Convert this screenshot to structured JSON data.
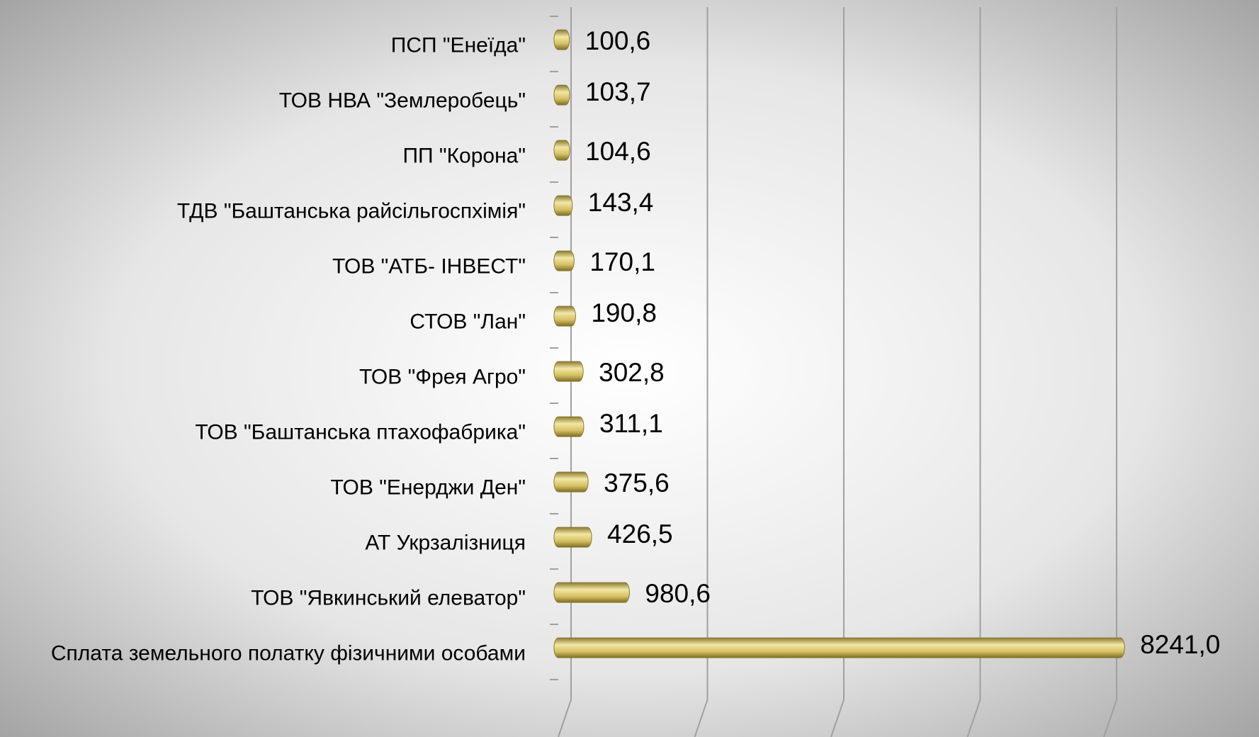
{
  "chart_data": {
    "type": "bar",
    "orientation": "horizontal",
    "categories": [
      "ПСП \"Енеїда\"",
      "ТОВ НВА \"Землеробець\"",
      "ПП \"Корона\"",
      "ТДВ \"Баштанська райсільгоспхімія\"",
      "ТОВ \"АТБ- ІНВЕСТ\"",
      "СТОВ \"Лан\"",
      "ТОВ \"Фрея Агро\"",
      "ТОВ \"Баштанська птахофабрика\"",
      "ТОВ \"Енерджи Ден\"",
      "АТ Укрзалізниця",
      "ТОВ \"Явкинський елеватор\"",
      "Сплата земельного полатку фізичними особами"
    ],
    "values": [
      100.6,
      103.7,
      104.6,
      143.4,
      170.1,
      190.8,
      302.8,
      311.1,
      375.6,
      426.5,
      980.6,
      8241.0
    ],
    "value_labels": [
      "100,6",
      "103,7",
      "104,6",
      "143,4",
      "170,1",
      "190,8",
      "302,8",
      "311,1",
      "375,6",
      "426,5",
      "980,6",
      "8241,0"
    ],
    "color": "#d9c56a",
    "xlim": [
      0,
      8000
    ],
    "xticks": [
      0,
      2000,
      4000,
      6000,
      8000
    ],
    "grid": true
  }
}
